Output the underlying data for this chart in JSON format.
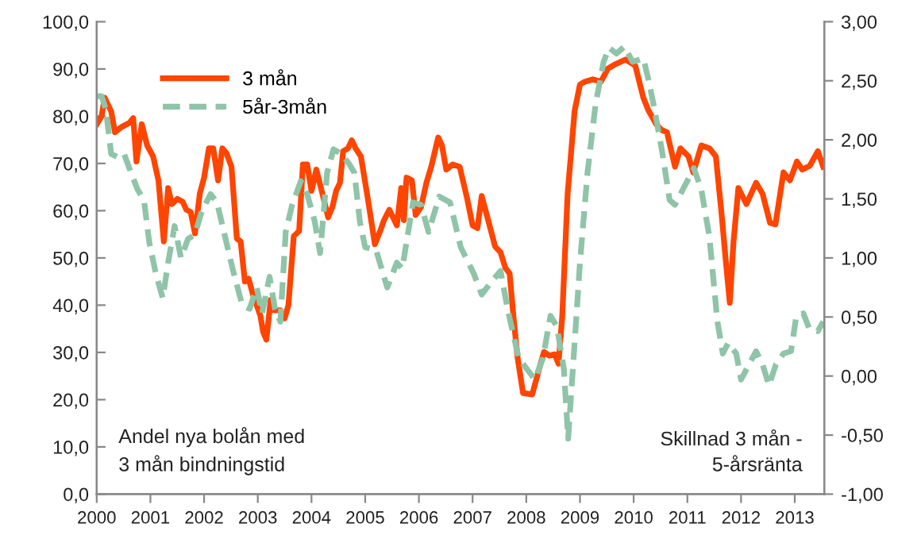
{
  "chart_data": {
    "type": "line",
    "xlim": [
      2000,
      2013.55
    ],
    "xticks": [
      2000,
      2001,
      2002,
      2003,
      2004,
      2005,
      2006,
      2007,
      2008,
      2009,
      2010,
      2011,
      2012,
      2013
    ],
    "ylim": [
      0,
      100
    ],
    "yticks": [
      {
        "value": 0,
        "label": "0,0"
      },
      {
        "value": 10,
        "label": "10,0"
      },
      {
        "value": 20,
        "label": "20,0"
      },
      {
        "value": 30,
        "label": "30,0"
      },
      {
        "value": 40,
        "label": "40,0"
      },
      {
        "value": 50,
        "label": "50,0"
      },
      {
        "value": 60,
        "label": "60,0"
      },
      {
        "value": 70,
        "label": "70,0"
      },
      {
        "value": 80,
        "label": "80,0"
      },
      {
        "value": 90,
        "label": "90,0"
      },
      {
        "value": 100,
        "label": "100,0"
      }
    ],
    "y2lim": [
      -1,
      3
    ],
    "y2ticks": [
      {
        "value": -1,
        "label": "-1,00"
      },
      {
        "value": -0.5,
        "label": "-0,50"
      },
      {
        "value": 0,
        "label": "0,00"
      },
      {
        "value": 0.5,
        "label": "0,50"
      },
      {
        "value": 1,
        "label": "1,00"
      },
      {
        "value": 1.5,
        "label": "1,50"
      },
      {
        "value": 2,
        "label": "2,00"
      },
      {
        "value": 2.5,
        "label": "2,50"
      },
      {
        "value": 3,
        "label": "3,00"
      }
    ],
    "grid": false,
    "legend": "top left",
    "annotations": [
      "Andel nya bolån med\n3 mån bindningstid",
      "Skillnad 3 mån -\n5-årsränta"
    ],
    "series": [
      {
        "name": "3 mån",
        "color": "#ff4500",
        "line_style": "solid",
        "x": [
          2000.0,
          2000.09,
          2000.15,
          2000.27,
          2000.34,
          2000.46,
          2000.61,
          2000.68,
          2000.74,
          2000.84,
          2000.94,
          2001.05,
          2001.15,
          2001.25,
          2001.33,
          2001.4,
          2001.5,
          2001.6,
          2001.67,
          2001.75,
          2001.83,
          2001.92,
          2002.0,
          2002.09,
          2002.17,
          2002.26,
          2002.34,
          2002.42,
          2002.51,
          2002.61,
          2002.68,
          2002.76,
          2002.83,
          2002.91,
          2003.05,
          2003.1,
          2003.16,
          2003.24,
          2003.31,
          2003.42,
          2003.5,
          2003.57,
          2003.67,
          2003.77,
          2003.84,
          2003.92,
          2004.0,
          2004.09,
          2004.19,
          2004.31,
          2004.39,
          2004.46,
          2004.53,
          2004.59,
          2004.68,
          2004.75,
          2004.82,
          2004.92,
          2005.05,
          2005.18,
          2005.28,
          2005.35,
          2005.45,
          2005.59,
          2005.67,
          2005.72,
          2005.77,
          2005.87,
          2005.94,
          2006.04,
          2006.14,
          2006.23,
          2006.36,
          2006.43,
          2006.51,
          2006.63,
          2006.76,
          2006.9,
          2007.0,
          2007.09,
          2007.17,
          2007.29,
          2007.42,
          2007.52,
          2007.61,
          2007.69,
          2007.76,
          2007.84,
          2007.94,
          2008.11,
          2008.24,
          2008.33,
          2008.43,
          2008.53,
          2008.6,
          2008.67,
          2008.77,
          2008.9,
          2009.0,
          2009.09,
          2009.24,
          2009.39,
          2009.52,
          2009.64,
          2009.85,
          2010.03,
          2010.18,
          2010.28,
          2010.42,
          2010.52,
          2010.62,
          2010.77,
          2010.87,
          2011.02,
          2011.11,
          2011.26,
          2011.41,
          2011.53,
          2011.63,
          2011.71,
          2011.79,
          2011.86,
          2011.95,
          2012.1,
          2012.28,
          2012.4,
          2012.54,
          2012.64,
          2012.79,
          2012.91,
          2013.04,
          2013.14,
          2013.28,
          2013.43,
          2013.53
        ],
        "values": [
          78.3,
          80,
          83.9,
          81,
          76.6,
          77.7,
          78.6,
          79.6,
          70.4,
          78.3,
          73.8,
          71.5,
          66.4,
          53.5,
          64.8,
          61.4,
          62.5,
          61.9,
          60.2,
          59.7,
          55.2,
          63.6,
          67,
          73.2,
          73.2,
          66.4,
          73.2,
          72.1,
          69.3,
          54.1,
          53.5,
          45,
          45.6,
          42.2,
          37.7,
          34.3,
          32.7,
          41.1,
          38.9,
          38.9,
          37.2,
          40,
          54.6,
          55.7,
          69.8,
          69.8,
          64.2,
          68.7,
          64.2,
          58.6,
          60.8,
          64.2,
          65.9,
          72.6,
          73.2,
          74.9,
          73.2,
          71.5,
          62.5,
          52.9,
          55.7,
          58,
          60.2,
          56.9,
          64.8,
          58,
          67,
          66.4,
          59.1,
          60.8,
          65.9,
          69.3,
          75.5,
          73.8,
          68.7,
          69.8,
          69.3,
          62.5,
          56.9,
          56.3,
          63.1,
          58,
          52.4,
          51.2,
          47.9,
          46.7,
          37.7,
          28.7,
          21.4,
          21.1,
          26.5,
          30.1,
          29.3,
          29.6,
          27.6,
          37.7,
          63.6,
          81.1,
          86.7,
          87.3,
          87.8,
          87.3,
          90.1,
          90.9,
          92,
          90.7,
          83.9,
          81.1,
          78.3,
          77.1,
          76.6,
          69.3,
          73.2,
          71.5,
          68.1,
          73.8,
          73.2,
          71.5,
          60.2,
          50.1,
          40.5,
          53.5,
          64.8,
          61.4,
          65.9,
          63.6,
          57.4,
          57.1,
          68.1,
          66.4,
          70.4,
          68.7,
          69.5,
          72.6,
          69.3
        ]
      },
      {
        "name": "5år-3mån",
        "color": "#8fc4a8",
        "line_style": "dashed",
        "axis": "y2",
        "x": [
          2000.0,
          2000.09,
          2000.17,
          2000.27,
          2000.41,
          2000.51,
          2000.64,
          2000.76,
          2000.88,
          2000.98,
          2001.1,
          2001.23,
          2001.33,
          2001.45,
          2001.57,
          2001.7,
          2001.83,
          2001.96,
          2002.12,
          2002.24,
          2002.39,
          2002.53,
          2002.71,
          2002.85,
          2002.98,
          2003.08,
          2003.22,
          2003.32,
          2003.42,
          2003.52,
          2003.64,
          2003.8,
          2003.92,
          2004.06,
          2004.16,
          2004.29,
          2004.41,
          2004.56,
          2004.71,
          2004.8,
          2004.9,
          2005.0,
          2005.2,
          2005.41,
          2005.59,
          2005.69,
          2005.89,
          2006.04,
          2006.18,
          2006.38,
          2006.58,
          2006.78,
          2007.02,
          2007.17,
          2007.32,
          2007.52,
          2007.66,
          2007.86,
          2008.16,
          2008.31,
          2008.45,
          2008.57,
          2008.7,
          2008.78,
          2008.9,
          2009.0,
          2009.14,
          2009.29,
          2009.44,
          2009.54,
          2009.68,
          2009.83,
          2009.98,
          2010.18,
          2010.28,
          2010.37,
          2010.53,
          2010.67,
          2010.77,
          2010.87,
          2011.02,
          2011.12,
          2011.26,
          2011.41,
          2011.56,
          2011.66,
          2011.76,
          2011.91,
          2012.0,
          2012.15,
          2012.28,
          2012.4,
          2012.52,
          2012.65,
          2012.79,
          2012.93,
          2013.03,
          2013.16,
          2013.28,
          2013.43,
          2013.53
        ],
        "values": [
          2.37,
          2.37,
          2.26,
          1.88,
          1.85,
          1.88,
          1.72,
          1.58,
          1.49,
          1.13,
          0.87,
          0.66,
          0.96,
          1.27,
          1.0,
          1.16,
          1.2,
          1.4,
          1.54,
          1.47,
          1.18,
          0.91,
          0.6,
          0.57,
          0.75,
          0.53,
          0.84,
          0.57,
          0.46,
          1.22,
          1.45,
          1.65,
          1.54,
          1.31,
          1.04,
          1.72,
          1.92,
          1.88,
          1.79,
          1.72,
          1.31,
          1.09,
          1.07,
          0.75,
          0.96,
          0.91,
          1.47,
          1.45,
          1.22,
          1.52,
          1.47,
          1.09,
          0.87,
          0.69,
          0.78,
          0.89,
          0.55,
          0.15,
          -0.03,
          0.15,
          0.51,
          0.42,
          0.06,
          -0.53,
          0.28,
          0.96,
          1.72,
          2.3,
          2.66,
          2.78,
          2.73,
          2.79,
          2.66,
          2.69,
          2.5,
          2.3,
          1.9,
          1.49,
          1.45,
          1.54,
          1.67,
          1.76,
          1.58,
          1.18,
          0.46,
          0.19,
          0.28,
          0.19,
          -0.03,
          0.1,
          0.21,
          0.1,
          -0.08,
          0.1,
          0.19,
          0.21,
          0.51,
          0.53,
          0.39,
          0.38,
          0.46
        ]
      }
    ]
  }
}
